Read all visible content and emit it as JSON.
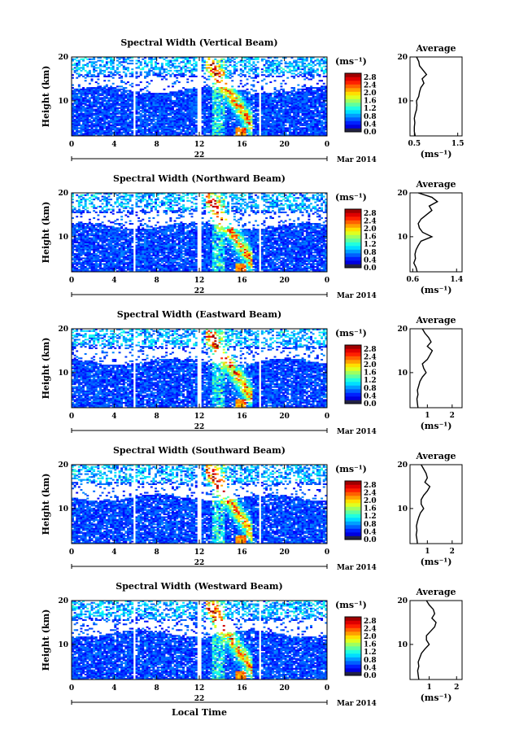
{
  "xlabel": "Local Time",
  "date_label": "Mar 2014",
  "chart_data": [
    {
      "type": "heatmap",
      "title": "Spectral Width (Vertical Beam)",
      "ylabel": "Height (km)",
      "x_ticks": [
        "0",
        "4",
        "8",
        "12",
        "16",
        "20",
        "0"
      ],
      "xlim": [
        0,
        24
      ],
      "ylim": [
        2,
        20
      ],
      "y_ticks": [
        "10",
        "20"
      ],
      "day_label": "22",
      "colorbar": {
        "unit": "(ms⁻¹)",
        "ticks": [
          "0.0",
          "0.4",
          "0.8",
          "1.2",
          "1.6",
          "2.0",
          "2.4",
          "2.8"
        ],
        "range": [
          0,
          3.0
        ]
      },
      "data_gaps_local_time": [
        [
          5.7,
          5.9
        ],
        [
          11.8,
          12.2
        ],
        [
          17.6,
          17.8
        ]
      ],
      "average_profile": {
        "title": "Average",
        "xlabel": "(ms⁻¹)",
        "x_ticks": [
          "0.5",
          "1.5"
        ],
        "xlim": [
          0.4,
          1.6
        ],
        "y_ticks": [
          "10",
          "20"
        ],
        "height_km": [
          2,
          3,
          4,
          5,
          6,
          7,
          8,
          9,
          10,
          11,
          12,
          13,
          14,
          15,
          16,
          17,
          18,
          19,
          20
        ],
        "width": [
          0.52,
          0.5,
          0.5,
          0.51,
          0.5,
          0.52,
          0.55,
          0.56,
          0.55,
          0.6,
          0.62,
          0.65,
          0.72,
          0.68,
          0.78,
          0.7,
          0.62,
          0.6,
          0.55
        ]
      }
    },
    {
      "type": "heatmap",
      "title": "Spectral Width (Northward Beam)",
      "ylabel": "Height (km)",
      "x_ticks": [
        "0",
        "4",
        "8",
        "12",
        "16",
        "20",
        "0"
      ],
      "xlim": [
        0,
        24
      ],
      "ylim": [
        2,
        20
      ],
      "y_ticks": [
        "10",
        "20"
      ],
      "day_label": "22",
      "colorbar": {
        "unit": "(ms⁻¹)",
        "ticks": [
          "0.0",
          "0.4",
          "0.8",
          "1.2",
          "1.6",
          "2.0",
          "2.4",
          "2.8"
        ],
        "range": [
          0,
          3.0
        ]
      },
      "data_gaps_local_time": [
        [
          5.7,
          5.9
        ],
        [
          11.8,
          12.2
        ],
        [
          17.6,
          17.8
        ]
      ],
      "average_profile": {
        "title": "Average",
        "xlabel": "(ms⁻¹)",
        "x_ticks": [
          "0.6",
          "1.4"
        ],
        "xlim": [
          0.55,
          1.5
        ],
        "y_ticks": [
          "10",
          "20"
        ],
        "height_km": [
          2,
          3,
          4,
          5,
          6,
          7,
          8,
          9,
          10,
          11,
          12,
          13,
          14,
          15,
          16,
          17,
          18,
          19,
          20
        ],
        "width": [
          0.68,
          0.66,
          0.62,
          0.65,
          0.64,
          0.66,
          0.7,
          0.75,
          0.95,
          0.78,
          0.72,
          0.7,
          0.75,
          0.85,
          0.95,
          0.9,
          1.05,
          0.95,
          0.7
        ]
      }
    },
    {
      "type": "heatmap",
      "title": "Spectral Width (Eastward Beam)",
      "ylabel": "Height (km)",
      "x_ticks": [
        "0",
        "4",
        "8",
        "12",
        "16",
        "20",
        "0"
      ],
      "xlim": [
        0,
        24
      ],
      "ylim": [
        2,
        20
      ],
      "y_ticks": [
        "10",
        "20"
      ],
      "day_label": "22",
      "colorbar": {
        "unit": "(ms⁻¹)",
        "ticks": [
          "0.0",
          "0.4",
          "0.8",
          "1.2",
          "1.6",
          "2.0",
          "2.4",
          "2.8"
        ],
        "range": [
          0,
          3.0
        ]
      },
      "data_gaps_local_time": [
        [
          5.7,
          5.9
        ],
        [
          11.8,
          12.2
        ],
        [
          17.6,
          17.8
        ]
      ],
      "average_profile": {
        "title": "Average",
        "xlabel": "(ms⁻¹)",
        "x_ticks": [
          "1",
          "2"
        ],
        "xlim": [
          0.3,
          2.4
        ],
        "y_ticks": [
          "10",
          "20"
        ],
        "height_km": [
          2,
          3,
          4,
          5,
          6,
          7,
          8,
          9,
          10,
          11,
          12,
          13,
          14,
          15,
          16,
          17,
          18,
          19,
          20
        ],
        "width": [
          0.62,
          0.6,
          0.58,
          0.62,
          0.6,
          0.65,
          0.7,
          0.8,
          0.95,
          0.85,
          0.8,
          1.0,
          1.1,
          1.2,
          1.0,
          1.15,
          1.05,
          0.9,
          0.8
        ]
      }
    },
    {
      "type": "heatmap",
      "title": "Spectral Width (Southward Beam)",
      "ylabel": "Height (km)",
      "x_ticks": [
        "0",
        "4",
        "8",
        "12",
        "16",
        "20",
        "0"
      ],
      "xlim": [
        0,
        24
      ],
      "ylim": [
        2,
        20
      ],
      "y_ticks": [
        "10",
        "20"
      ],
      "day_label": "22",
      "colorbar": {
        "unit": "(ms⁻¹)",
        "ticks": [
          "0.0",
          "0.4",
          "0.8",
          "1.2",
          "1.6",
          "2.0",
          "2.4",
          "2.8"
        ],
        "range": [
          0,
          3.0
        ]
      },
      "data_gaps_local_time": [
        [
          5.7,
          5.9
        ],
        [
          11.8,
          12.2
        ],
        [
          17.6,
          17.8
        ]
      ],
      "average_profile": {
        "title": "Average",
        "xlabel": "(ms⁻¹)",
        "x_ticks": [
          "1",
          "2"
        ],
        "xlim": [
          0.3,
          2.4
        ],
        "y_ticks": [
          "10",
          "20"
        ],
        "height_km": [
          2,
          3,
          4,
          5,
          6,
          7,
          8,
          9,
          10,
          11,
          12,
          13,
          14,
          15,
          16,
          17,
          18,
          19,
          20
        ],
        "width": [
          0.6,
          0.58,
          0.55,
          0.58,
          0.56,
          0.6,
          0.65,
          0.72,
          0.85,
          0.75,
          0.75,
          0.85,
          1.0,
          1.1,
          0.9,
          1.0,
          0.95,
          0.85,
          0.75
        ]
      }
    },
    {
      "type": "heatmap",
      "title": "Spectral Width (Westward Beam)",
      "ylabel": "Height (km)",
      "x_ticks": [
        "0",
        "4",
        "8",
        "12",
        "16",
        "20",
        "0"
      ],
      "xlim": [
        0,
        24
      ],
      "ylim": [
        2,
        20
      ],
      "y_ticks": [
        "10",
        "20"
      ],
      "day_label": "22",
      "colorbar": {
        "unit": "(ms⁻¹)",
        "ticks": [
          "0.0",
          "0.4",
          "0.8",
          "1.2",
          "1.6",
          "2.0",
          "2.4",
          "2.8"
        ],
        "range": [
          0,
          3.0
        ]
      },
      "data_gaps_local_time": [
        [
          5.7,
          5.9
        ],
        [
          11.8,
          12.2
        ],
        [
          17.6,
          17.8
        ]
      ],
      "average_profile": {
        "title": "Average",
        "xlabel": "(ms⁻¹)",
        "x_ticks": [
          "1",
          "2"
        ],
        "xlim": [
          0.3,
          2.2
        ],
        "y_ticks": [
          "10",
          "20"
        ],
        "height_km": [
          2,
          3,
          4,
          5,
          6,
          7,
          8,
          9,
          10,
          11,
          12,
          13,
          14,
          15,
          16,
          17,
          18,
          19,
          20
        ],
        "width": [
          0.62,
          0.6,
          0.58,
          0.62,
          0.6,
          0.66,
          0.72,
          0.85,
          1.0,
          0.9,
          0.9,
          1.05,
          1.2,
          1.25,
          1.1,
          1.2,
          1.15,
          1.0,
          0.9
        ]
      }
    }
  ]
}
